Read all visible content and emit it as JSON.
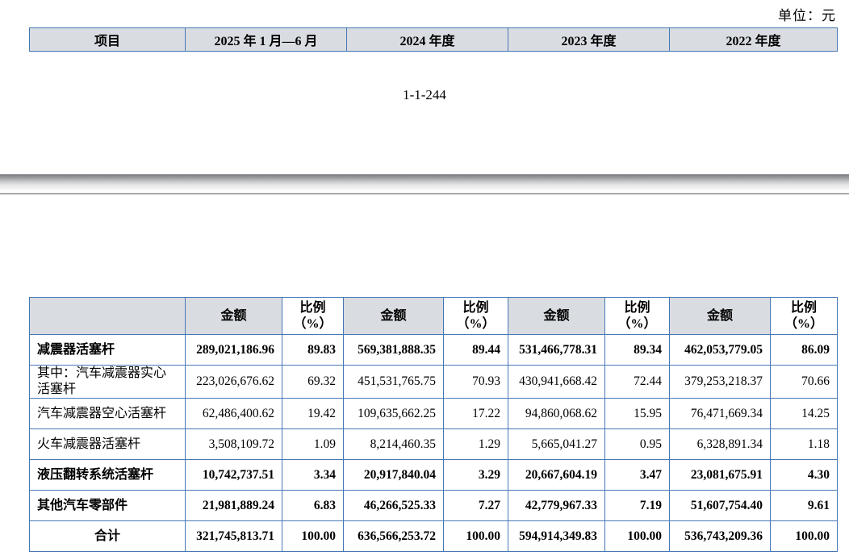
{
  "page": {
    "unit_label": "单位：元",
    "page_number": "1-1-244"
  },
  "top_table": {
    "headers": [
      "项目",
      "2025 年 1 月—6 月",
      "2024 年度",
      "2023 年度",
      "2022 年度"
    ]
  },
  "main_table": {
    "amount_header": "金额",
    "ratio_header_line1": "比例",
    "ratio_header_line2": "（%）",
    "rows": [
      {
        "label": "减震器活塞杆",
        "bold": true,
        "center": false,
        "cells": [
          "289,021,186.96",
          "89.83",
          "569,381,888.35",
          "89.44",
          "531,466,778.31",
          "89.34",
          "462,053,779.05",
          "86.09"
        ]
      },
      {
        "label": "其中：汽车减震器实心活塞杆",
        "bold": false,
        "center": false,
        "cells": [
          "223,026,676.62",
          "69.32",
          "451,531,765.75",
          "70.93",
          "430,941,668.42",
          "72.44",
          "379,253,218.37",
          "70.66"
        ]
      },
      {
        "label": "汽车减震器空心活塞杆",
        "bold": false,
        "center": false,
        "cells": [
          "62,486,400.62",
          "19.42",
          "109,635,662.25",
          "17.22",
          "94,860,068.62",
          "15.95",
          "76,471,669.34",
          "14.25"
        ]
      },
      {
        "label": "火车减震器活塞杆",
        "bold": false,
        "center": false,
        "cells": [
          "3,508,109.72",
          "1.09",
          "8,214,460.35",
          "1.29",
          "5,665,041.27",
          "0.95",
          "6,328,891.34",
          "1.18"
        ]
      },
      {
        "label": "液压翻转系统活塞杆",
        "bold": true,
        "center": false,
        "cells": [
          "10,742,737.51",
          "3.34",
          "20,917,840.04",
          "3.29",
          "20,667,604.19",
          "3.47",
          "23,081,675.91",
          "4.30"
        ]
      },
      {
        "label": "其他汽车零部件",
        "bold": true,
        "center": false,
        "cells": [
          "21,981,889.24",
          "6.83",
          "46,266,525.33",
          "7.27",
          "42,779,967.33",
          "7.19",
          "51,607,754.40",
          "9.61"
        ]
      },
      {
        "label": "合计",
        "bold": true,
        "center": true,
        "cells": [
          "321,745,813.71",
          "100.00",
          "636,566,253.72",
          "100.00",
          "594,914,349.83",
          "100.00",
          "536,743,209.36",
          "100.00"
        ]
      }
    ]
  }
}
